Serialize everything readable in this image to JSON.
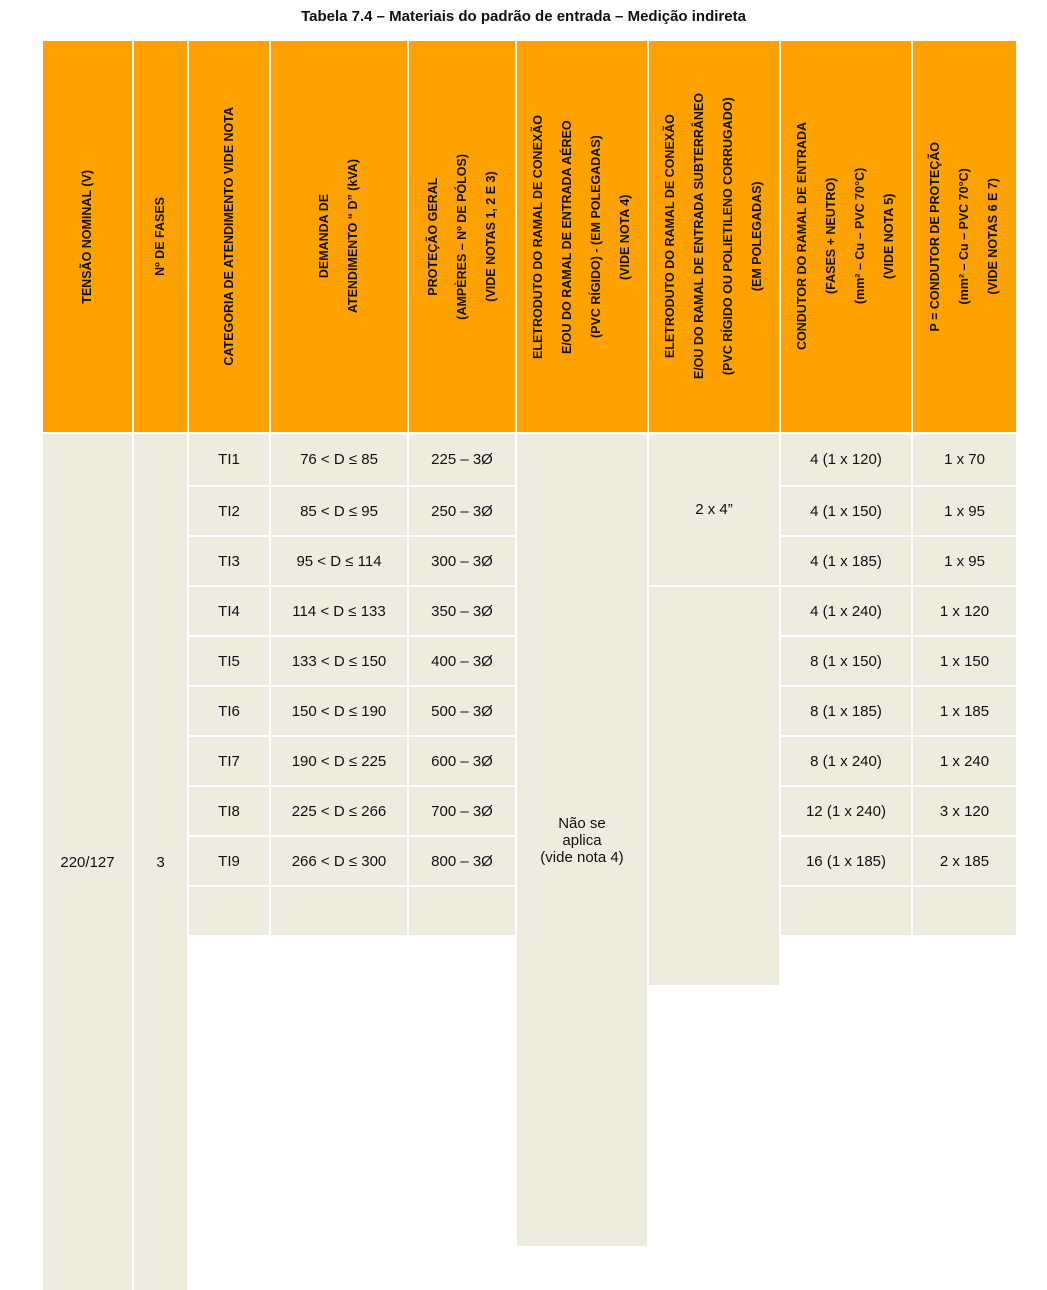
{
  "title": "Tabela 7.4 – Materiais do padrão de entrada – Medição indireta",
  "table": {
    "header": [
      [
        "TENSÃO NOMINAL (V)"
      ],
      [
        "Nº DE FASES"
      ],
      [
        "CATEGORIA DE ATENDIMENTO VIDE NOTA"
      ],
      [
        "DEMANDA DE",
        "ATENDIMENTO “ D”  (kVA)"
      ],
      [
        "PROTEÇÃO GERAL",
        "(AMPÈRES – Nº DE PÓLOS)",
        "(VIDE NOTAS 1, 2 E 3)"
      ],
      [
        "ELETRODUTO DO RAMAL DE CONEXÃO",
        "E/OU DO RAMAL DE ENTRADA AÉREO",
        "(PVC RÍGIDO) - (EM POLEGADAS)",
        "(VIDE NOTA 4)"
      ],
      [
        "ELETRODUTO DO RAMAL DE CONEXÃO",
        "E/OU DO RAMAL DE ENTRADA SUBTERRÂNEO",
        "(PVC RÍGIDO OU POLIETILENO CORRUGADO)",
        "(EM POLEGADAS)"
      ],
      [
        "CONDUTOR DO RAMAL DE ENTRADA",
        "(FASES + NEUTRO)",
        "(mm² – Cu – PVC 70°C)",
        "(VIDE NOTA 5)"
      ],
      [
        "P = CONDUTOR DE PROTEÇÃO",
        "(mm² – Cu – PVC 70°C)",
        "(VIDE NOTAS 6 E 7)"
      ]
    ],
    "tensao": "220/127",
    "fases": "3",
    "aereo": [
      "Não se",
      "aplica",
      "(vide nota 4)"
    ],
    "subterraneo": "2 x 4”",
    "rows": [
      [
        "TI1",
        "76 < D ≤ 85",
        "225 – 3Ø",
        "4 (1 x 120)",
        "1 x 70"
      ],
      [
        "TI2",
        "85 < D ≤ 95",
        "250 – 3Ø",
        "4 (1 x 150)",
        "1 x 95"
      ],
      [
        "TI3",
        "95 < D ≤ 114",
        "300 – 3Ø",
        "4 (1 x 185)",
        "1 x 95"
      ],
      [
        "TI4",
        "114 < D ≤ 133",
        "350 – 3Ø",
        "4 (1 x 240)",
        "1 x 120"
      ],
      [
        "TI5",
        "133 < D ≤ 150",
        "400 – 3Ø",
        "8 (1 x 150)",
        "1 x 150"
      ],
      [
        "TI6",
        "150 < D ≤ 190",
        "500 – 3Ø",
        "8 (1 x 185)",
        "1 x 185"
      ],
      [
        "TI7",
        "190 < D ≤ 225",
        "600 – 3Ø",
        "8 (1 x 240)",
        "1 x 240"
      ],
      [
        "TI8",
        "225 < D ≤ 266",
        "700 – 3Ø",
        "12 (1 x 240)",
        "3 x 120"
      ],
      [
        "TI9",
        "266 < D ≤ 300",
        "800 – 3Ø",
        "16 (1 x 185)",
        "2 x 185"
      ]
    ]
  }
}
